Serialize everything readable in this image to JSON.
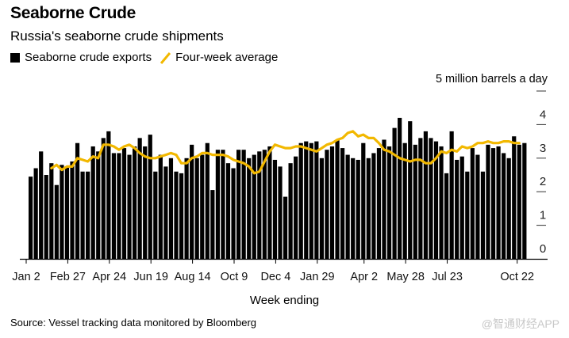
{
  "header": {
    "title": "Seaborne Crude",
    "subtitle": "Russia's seaborne crude shipments"
  },
  "legend": {
    "bars_label": "Seaborne crude exports",
    "line_label": "Four-week average"
  },
  "colors": {
    "bars": "#000000",
    "line": "#f2b800"
  },
  "footer": {
    "source": "Source: Vessel tracking data monitored by Bloomberg",
    "watermark": "@智通财经APP"
  },
  "chart_data": {
    "type": "bar",
    "title": "Seaborne Crude",
    "subtitle": "Russia's seaborne crude shipments",
    "xlabel": "Week ending",
    "ylabel": "5 million barrels a day",
    "ylim": [
      0,
      5
    ],
    "yticks": [
      "0",
      "1",
      "2",
      "3",
      "4"
    ],
    "xtick_labels": [
      "Jan 2",
      "Feb 27",
      "Apr 24",
      "Jun 19",
      "Aug 14",
      "Oct 9",
      "Dec 4",
      "Jan 29",
      "Apr 2",
      "May 28",
      "Jul 23",
      "Oct 22"
    ],
    "xtick_week_index": [
      0,
      8,
      16,
      24,
      32,
      40,
      48,
      56,
      65,
      73,
      81,
      94
    ],
    "grid": false,
    "legend_position": "top-left",
    "series": [
      {
        "name": "Seaborne crude exports",
        "kind": "bar",
        "values": [
          2.45,
          2.7,
          3.2,
          2.5,
          2.85,
          2.2,
          2.8,
          2.75,
          2.9,
          3.45,
          2.6,
          2.6,
          3.35,
          3.2,
          3.6,
          3.8,
          3.15,
          3.15,
          3.3,
          3.1,
          3.35,
          3.6,
          3.35,
          3.7,
          2.6,
          3.1,
          2.75,
          3.0,
          2.6,
          2.55,
          3.0,
          3.4,
          3.0,
          3.1,
          3.45,
          2.05,
          3.25,
          3.25,
          2.85,
          2.7,
          3.25,
          3.25,
          3.0,
          3.1,
          3.2,
          3.25,
          3.35,
          2.95,
          2.75,
          1.85,
          2.85,
          3.05,
          3.45,
          3.5,
          3.45,
          3.5,
          3.0,
          3.25,
          3.35,
          3.55,
          3.3,
          3.1,
          3.0,
          2.95,
          3.45,
          3.0,
          3.15,
          3.3,
          3.55,
          3.35,
          3.9,
          4.2,
          3.45,
          4.1,
          3.4,
          3.6,
          3.8,
          3.6,
          3.5,
          3.35,
          2.55,
          3.8,
          2.95,
          3.05,
          2.6,
          3.3,
          3.1,
          2.6,
          3.4,
          3.3,
          3.35,
          3.15,
          3.0,
          3.65,
          3.4,
          3.45
        ]
      },
      {
        "name": "Four-week average",
        "kind": "line",
        "start_index": 4,
        "values": [
          2.7,
          2.8,
          2.65,
          2.75,
          2.75,
          3.0,
          2.95,
          2.9,
          3.05,
          3.0,
          3.4,
          3.4,
          3.35,
          3.25,
          3.35,
          3.4,
          3.3,
          3.15,
          3.05,
          3.0,
          3.0,
          3.05,
          3.1,
          3.15,
          3.1,
          2.85,
          2.85,
          3.0,
          3.05,
          3.15,
          3.15,
          3.1,
          3.1,
          3.1,
          3.05,
          2.95,
          2.9,
          2.85,
          2.75,
          2.55,
          2.6,
          2.9,
          3.2,
          3.4,
          3.35,
          3.3,
          3.3,
          3.35,
          3.35,
          3.3,
          3.25,
          3.2,
          3.3,
          3.4,
          3.45,
          3.55,
          3.6,
          3.75,
          3.8,
          3.65,
          3.7,
          3.6,
          3.6,
          3.45,
          3.25,
          3.2,
          3.1,
          3.0,
          2.95,
          2.9,
          2.95,
          2.95,
          2.85,
          2.85,
          3.0,
          3.2,
          3.15,
          3.25,
          3.2,
          3.35,
          3.3,
          3.35,
          3.45,
          3.45,
          3.5,
          3.45,
          3.45,
          3.5,
          3.5,
          3.45,
          3.45
        ]
      }
    ]
  }
}
